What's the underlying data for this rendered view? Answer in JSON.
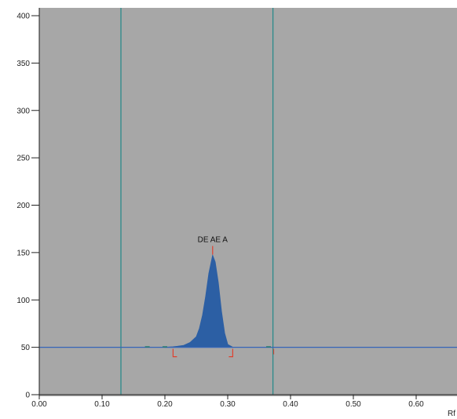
{
  "chart_data": {
    "type": "area",
    "x_axis_label": "Rf",
    "x_ticks": [
      "0.00",
      "0.10",
      "0.20",
      "0.30",
      "0.40",
      "0.50",
      "0.60"
    ],
    "y_ticks": [
      "0",
      "50",
      "100",
      "150",
      "200",
      "250",
      "300",
      "350",
      "400"
    ],
    "xlim": [
      0.0,
      0.66
    ],
    "ylim": [
      0,
      405
    ],
    "grid": false,
    "colors": {
      "plot_background": "#a7a7a7",
      "peak_fill": "#2c5fa4",
      "baseline": "#3565b8",
      "vertical_lines": "#2b8a8a",
      "peak_markers": "#e0402e"
    },
    "baseline_y": 50,
    "vertical_lines_x": [
      0.13,
      0.372
    ],
    "peak": {
      "label": "DE AE A",
      "apex_x": 0.276,
      "apex_y": 147,
      "start_x": 0.213,
      "end_x": 0.308
    },
    "series": [
      {
        "x": [
          0.2,
          0.213,
          0.22,
          0.23,
          0.24,
          0.25,
          0.255,
          0.26,
          0.265,
          0.27,
          0.276,
          0.28,
          0.285,
          0.29,
          0.295,
          0.3,
          0.308
        ],
        "y": [
          50,
          50.5,
          51,
          52,
          55,
          61,
          70,
          84,
          104,
          128,
          147,
          140,
          118,
          88,
          65,
          53,
          50
        ]
      }
    ]
  }
}
